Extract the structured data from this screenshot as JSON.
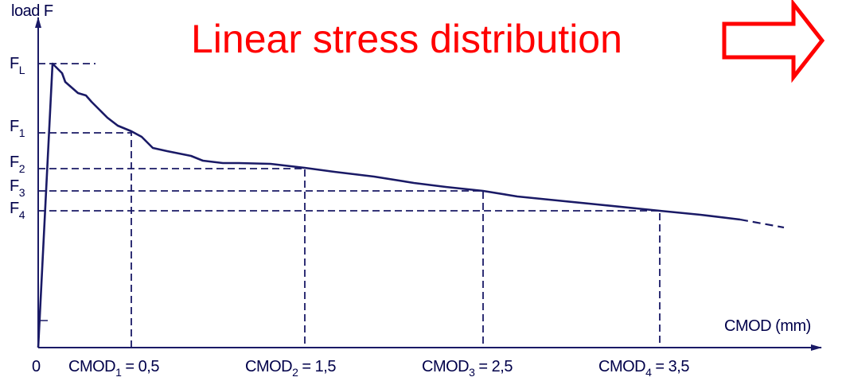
{
  "title": "Linear stress distribution",
  "y_axis_label": "load F",
  "x_axis_label": "CMOD (mm)",
  "origin_label": "0",
  "y_labels": [
    {
      "main": "F",
      "sub": "L"
    },
    {
      "main": "F",
      "sub": "1"
    },
    {
      "main": "F",
      "sub": "2"
    },
    {
      "main": "F",
      "sub": "3"
    },
    {
      "main": "F",
      "sub": "4"
    }
  ],
  "x_labels": [
    {
      "main": "CMOD",
      "sub": "1",
      "rest": "= 0,5"
    },
    {
      "main": "CMOD",
      "sub": "2",
      "rest": "= 1,5"
    },
    {
      "main": "CMOD",
      "sub": "3",
      "rest": "= 2,5"
    },
    {
      "main": "CMOD",
      "sub": "4",
      "rest": "= 3,5"
    }
  ]
}
